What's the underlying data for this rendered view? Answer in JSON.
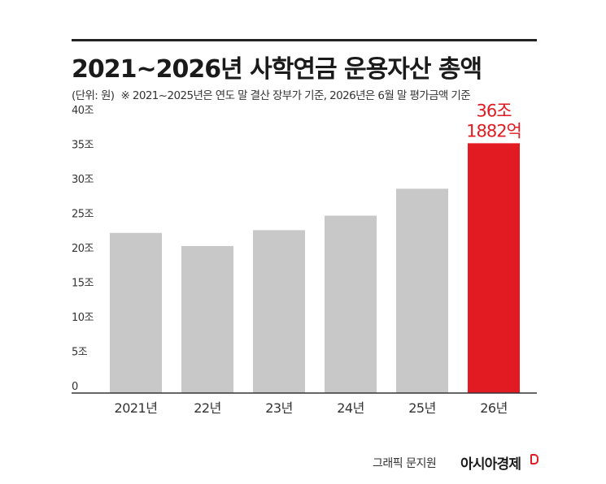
{
  "chart_data": {
    "type": "bar",
    "title": "2021~2026년 사학연금 운용자산 총액",
    "subtitle_unit": "(단위: 원)",
    "subtitle_note": "※ 2021~2025년은 연도 말 결산 장부가 기준, 2026년은 6월 말 평가금액 기준",
    "categories": [
      "2021년",
      "22년",
      "23년",
      "24년",
      "25년",
      "26년"
    ],
    "values": [
      23.2,
      21.3,
      23.6,
      25.7,
      29.6,
      36.1882
    ],
    "y_ticks": [
      {
        "value": 0,
        "label": "0"
      },
      {
        "value": 5,
        "label": "5조"
      },
      {
        "value": 10,
        "label": "10조"
      },
      {
        "value": 15,
        "label": "15조"
      },
      {
        "value": 20,
        "label": "20조"
      },
      {
        "value": 25,
        "label": "25조"
      },
      {
        "value": 30,
        "label": "30조"
      },
      {
        "value": 35,
        "label": "35조"
      },
      {
        "value": 40,
        "label": "40조"
      }
    ],
    "ylim": [
      0,
      40
    ],
    "grid": false,
    "highlight_index": 5,
    "highlight_label_line1": "36조",
    "highlight_label_line2": "1882억",
    "colors": {
      "bar": "#c8c8c8",
      "highlight": "#e21b22",
      "axis": "#333333"
    }
  },
  "footer": {
    "credit": "그래픽 문지원",
    "brand": "아시아경제"
  }
}
